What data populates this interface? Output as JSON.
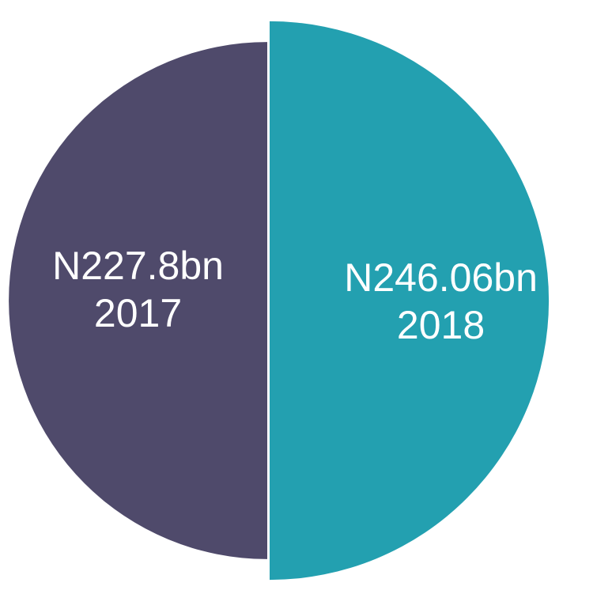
{
  "chart_data": {
    "type": "pie",
    "categories": [
      "2017",
      "2018"
    ],
    "values": [
      227.8,
      246.06
    ],
    "value_labels": [
      "N227.8bn",
      "N246.06bn"
    ],
    "colors": [
      "#4f4a6b",
      "#23a0b0"
    ]
  }
}
